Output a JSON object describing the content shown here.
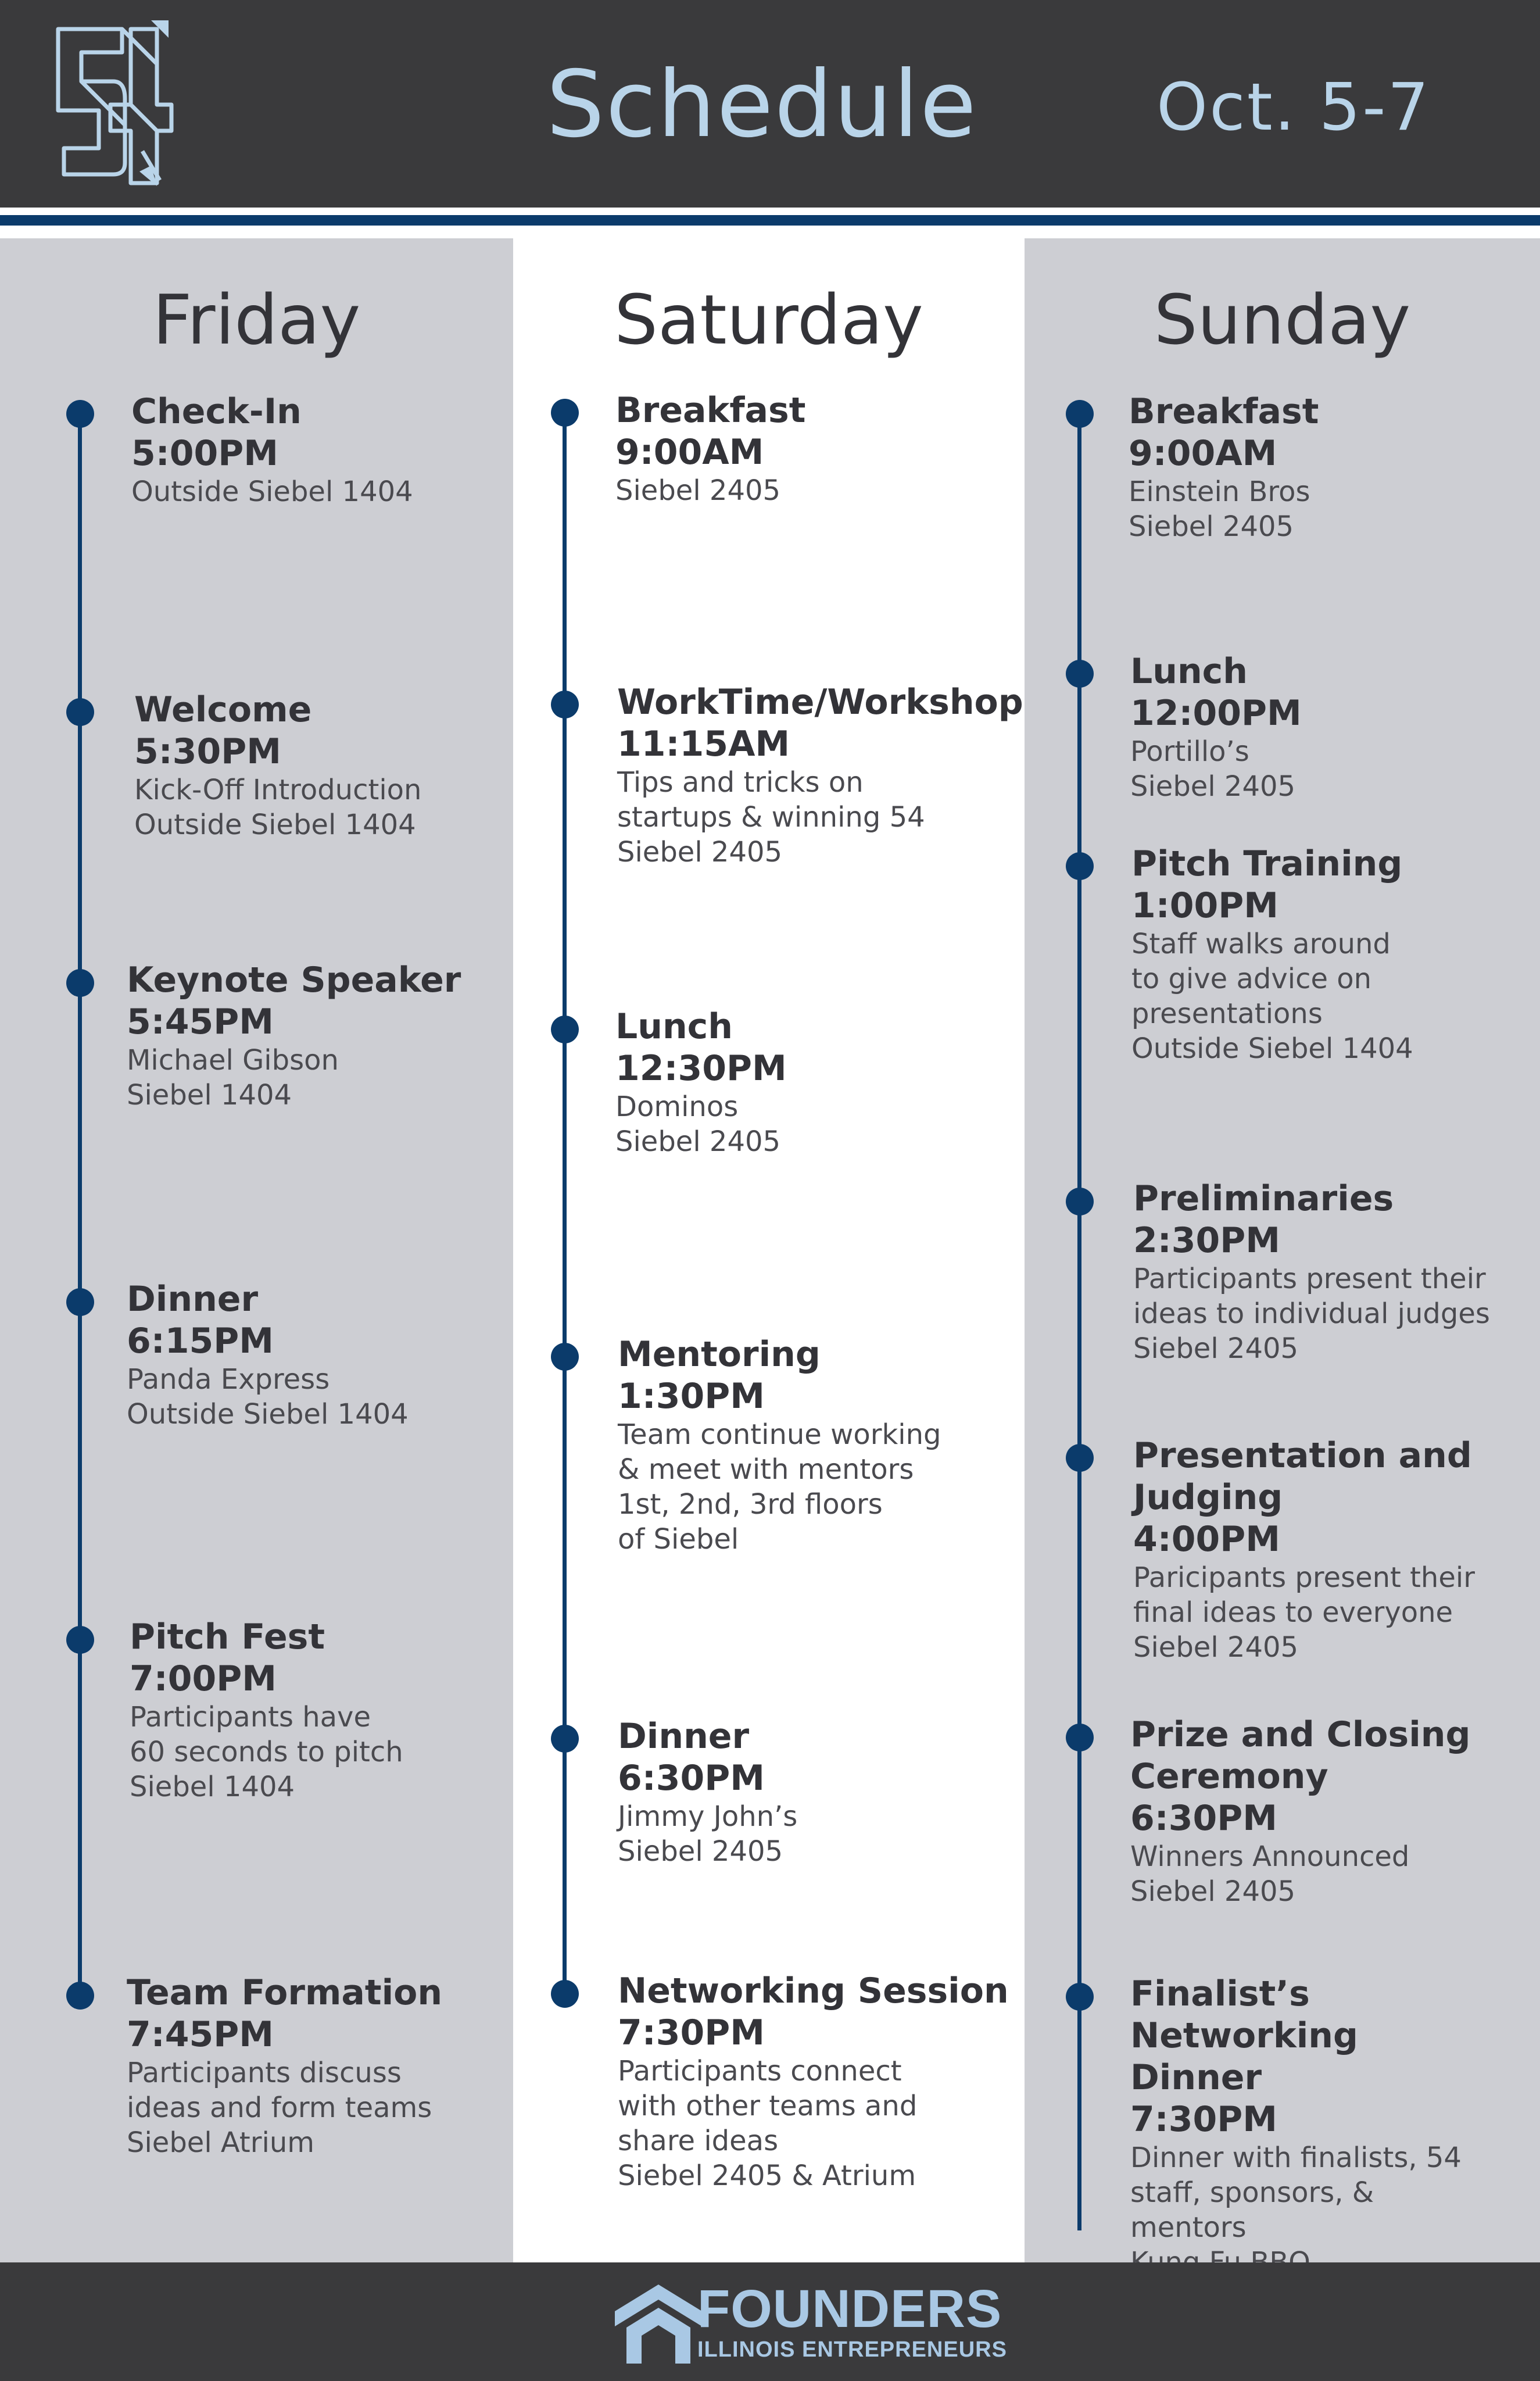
{
  "header": {
    "logo_text": "54",
    "title": "Schedule",
    "dates": "Oct. 5-7"
  },
  "colors": {
    "header_bg": "#3a3a3c",
    "accent_light_blue": "#b9d4e9",
    "navy": "#0b3b6b",
    "column_gray": "#cdced3"
  },
  "days": [
    {
      "name": "Friday",
      "events": [
        {
          "name": "Check-In",
          "time": "5:00PM",
          "details": [
            "Outside Siebel 1404"
          ]
        },
        {
          "name": "Welcome",
          "time": "5:30PM",
          "details": [
            "Kick-Off Introduction",
            "Outside Siebel 1404"
          ]
        },
        {
          "name": "Keynote Speaker",
          "time": "5:45PM",
          "details": [
            "Michael Gibson",
            "Siebel 1404"
          ]
        },
        {
          "name": "Dinner",
          "time": "6:15PM",
          "details": [
            "Panda Express",
            "Outside Siebel 1404"
          ]
        },
        {
          "name": "Pitch Fest",
          "time": "7:00PM",
          "details": [
            "Participants have",
            "60 seconds to pitch",
            "Siebel 1404"
          ]
        },
        {
          "name": "Team Formation",
          "time": "7:45PM",
          "details": [
            "Participants discuss",
            "ideas and form teams",
            "Siebel Atrium"
          ]
        }
      ]
    },
    {
      "name": "Saturday",
      "events": [
        {
          "name": "Breakfast",
          "time": "9:00AM",
          "details": [
            "Siebel 2405"
          ]
        },
        {
          "name": "WorkTime/Workshop",
          "time": "11:15AM",
          "details": [
            "Tips and tricks on",
            "startups & winning 54",
            "Siebel 2405"
          ]
        },
        {
          "name": "Lunch",
          "time": "12:30PM",
          "details": [
            "Dominos",
            "Siebel 2405"
          ]
        },
        {
          "name": "Mentoring",
          "time": "1:30PM",
          "details": [
            "Team continue working",
            "& meet with mentors",
            "1st, 2nd, 3rd floors",
            "of Siebel"
          ]
        },
        {
          "name": "Dinner",
          "time": "6:30PM",
          "details": [
            "Jimmy John’s",
            "Siebel 2405"
          ]
        },
        {
          "name": "Networking Session",
          "time": "7:30PM",
          "details": [
            "Participants connect",
            "with other teams and",
            "share ideas",
            "Siebel 2405 & Atrium"
          ]
        }
      ]
    },
    {
      "name": "Sunday",
      "events": [
        {
          "name": "Breakfast",
          "time": "9:00AM",
          "details": [
            "Einstein Bros",
            "Siebel 2405"
          ]
        },
        {
          "name": "Lunch",
          "time": "12:00PM",
          "details": [
            "Portillo’s",
            "Siebel 2405"
          ]
        },
        {
          "name": "Pitch Training",
          "time": "1:00PM",
          "details": [
            "Staff walks around",
            "to give advice on",
            "presentations",
            "Outside Siebel 1404"
          ]
        },
        {
          "name": "Preliminaries",
          "time": "2:30PM",
          "details": [
            "Participants present their",
            "ideas to individual judges",
            "Siebel 2405"
          ]
        },
        {
          "name": "Presentation and Judging",
          "time": "4:00PM",
          "details": [
            "Paricipants present their",
            "final ideas to everyone",
            "Siebel 2405"
          ]
        },
        {
          "name": "Prize and Closing Ceremony",
          "time": "6:30PM",
          "details": [
            "Winners Announced",
            "Siebel 2405"
          ]
        },
        {
          "name": "Finalist’s Networking Dinner",
          "time": "7:30PM",
          "details": [
            "Dinner with finalists, 54",
            "staff, sponsors, & mentors",
            "Kung Fu BBQ"
          ]
        }
      ]
    }
  ],
  "footer": {
    "title": "FOUNDERS",
    "subtitle": "ILLINOIS ENTREPRENEURS"
  }
}
